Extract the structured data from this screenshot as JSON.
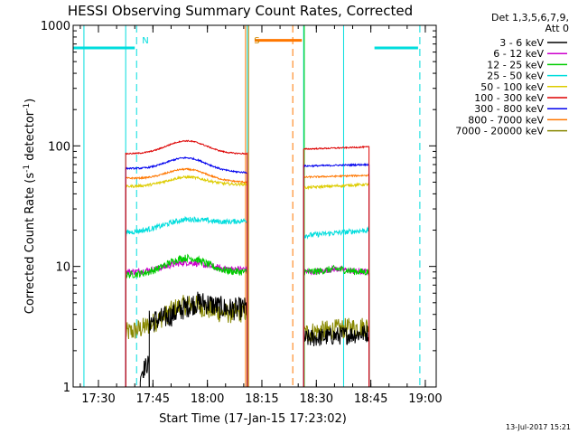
{
  "chart_data": {
    "type": "line",
    "title": "HESSI Observing Summary Count Rates, Corrected",
    "xlabel": "Start Time (17-Jan-15 17:23:02)",
    "ylabel_main": "Corrected Count Rate (s",
    "ylabel_sup1": "-1",
    "ylabel_mid": " detector",
    "ylabel_sup2": "-1",
    "ylabel_end": ")",
    "x_scale": "time",
    "y_scale": "log",
    "xlim": [
      "17:23:02",
      "19:03:00"
    ],
    "ylim": [
      1,
      1000
    ],
    "x_ticks": [
      "17:30",
      "17:45",
      "18:00",
      "18:15",
      "18:30",
      "18:45",
      "19:00"
    ],
    "y_ticks": [
      {
        "value": 1,
        "label": "1"
      },
      {
        "value": 10,
        "label": "10"
      },
      {
        "value": 100,
        "label": "100"
      },
      {
        "value": 1000,
        "label": "1000"
      }
    ],
    "legend_header": [
      "Det 1,3,5,6,7,9,",
      "Att 0"
    ],
    "legend_position": "right",
    "series": [
      {
        "name": "3 - 6 keV",
        "color": "#000000",
        "segments": [
          {
            "t0": "17:41:30",
            "t1": "17:44:00",
            "v0": 1.3,
            "v1": 1.6,
            "peak": 1.5,
            "noise": 0.18
          },
          {
            "t0": "17:44:00",
            "t1": "18:11:00",
            "v0": 3.5,
            "v1": 4.5,
            "peak": 5.5,
            "noise": 0.22
          },
          {
            "t0": "18:26:30",
            "t1": "18:44:30",
            "v0": 2.5,
            "v1": 2.8,
            "peak": 2.8,
            "noise": 0.18
          }
        ]
      },
      {
        "name": "6 - 12 keV",
        "color": "#cc00cc",
        "segments": [
          {
            "t0": "17:37:30",
            "t1": "18:11:00",
            "v0": 9,
            "v1": 9.5,
            "peak": 11,
            "noise": 0.06
          },
          {
            "t0": "18:26:30",
            "t1": "18:44:30",
            "v0": 9,
            "v1": 9,
            "peak": 9.5,
            "noise": 0.06
          }
        ]
      },
      {
        "name": "12 - 25 keV",
        "color": "#00cc00",
        "segments": [
          {
            "t0": "17:37:30",
            "t1": "18:11:00",
            "v0": 8.5,
            "v1": 9,
            "peak": 12,
            "noise": 0.07
          },
          {
            "t0": "18:26:30",
            "t1": "18:44:30",
            "v0": 9,
            "v1": 9,
            "peak": 9.5,
            "noise": 0.07
          }
        ]
      },
      {
        "name": "25 - 50 keV",
        "color": "#00dddd",
        "segments": [
          {
            "t0": "17:37:30",
            "t1": "18:11:00",
            "v0": 19,
            "v1": 24,
            "peak": 27,
            "noise": 0.05
          },
          {
            "t0": "18:26:30",
            "t1": "18:44:30",
            "v0": 18,
            "v1": 20,
            "peak": 19,
            "noise": 0.05
          }
        ]
      },
      {
        "name": "50 - 100 keV",
        "color": "#ddcc00",
        "segments": [
          {
            "t0": "17:37:30",
            "t1": "18:11:00",
            "v0": 46,
            "v1": 48,
            "peak": 56,
            "noise": 0.025
          },
          {
            "t0": "18:26:30",
            "t1": "18:44:30",
            "v0": 45,
            "v1": 48,
            "peak": 47,
            "noise": 0.025
          }
        ]
      },
      {
        "name": "100 - 300 keV",
        "color": "#dd0000",
        "segments": [
          {
            "t0": "17:37:30",
            "t1": "18:11:00",
            "v0": 86,
            "v1": 86,
            "peak": 110,
            "noise": 0.012
          },
          {
            "t0": "18:26:30",
            "t1": "18:44:30",
            "v0": 94,
            "v1": 98,
            "peak": 95,
            "noise": 0.012
          }
        ]
      },
      {
        "name": "300 - 800 keV",
        "color": "#0000ee",
        "segments": [
          {
            "t0": "17:37:30",
            "t1": "18:11:00",
            "v0": 65,
            "v1": 60,
            "peak": 82,
            "noise": 0.015
          },
          {
            "t0": "18:26:30",
            "t1": "18:44:30",
            "v0": 68,
            "v1": 70,
            "peak": 68,
            "noise": 0.015
          }
        ]
      },
      {
        "name": "800 - 7000 keV",
        "color": "#ff7700",
        "segments": [
          {
            "t0": "17:37:30",
            "t1": "18:11:00",
            "v0": 54,
            "v1": 50,
            "peak": 66,
            "noise": 0.015
          },
          {
            "t0": "18:26:30",
            "t1": "18:44:30",
            "v0": 55,
            "v1": 57,
            "peak": 56,
            "noise": 0.015
          }
        ]
      },
      {
        "name": "7000 - 20000 keV",
        "color": "#888800",
        "segments": [
          {
            "t0": "17:37:30",
            "t1": "18:11:00",
            "v0": 2.8,
            "v1": 4.2,
            "peak": 5.5,
            "noise": 0.2
          },
          {
            "t0": "18:26:30",
            "t1": "18:44:30",
            "v0": 2.8,
            "v1": 3.2,
            "peak": 3.2,
            "noise": 0.2
          }
        ]
      }
    ],
    "annotations": {
      "attenuator_bars": [
        {
          "t0": "17:23:02",
          "t1": "17:40:00",
          "value": 650,
          "color": "#00dddd"
        },
        {
          "t0": "18:13:00",
          "t1": "18:26:00",
          "value": 750,
          "color": "#ff7700"
        },
        {
          "t0": "18:46:00",
          "t1": "18:58:00",
          "value": 650,
          "color": "#00dddd"
        }
      ],
      "vlines": [
        {
          "t": "17:26:00",
          "color": "#00dddd",
          "style": "solid"
        },
        {
          "t": "17:37:30",
          "color": "#00dddd",
          "style": "solid"
        },
        {
          "t": "17:40:30",
          "color": "#00dddd",
          "style": "dashed",
          "label": "N"
        },
        {
          "t": "18:10:30",
          "color": "#ff7700",
          "style": "solid"
        },
        {
          "t": "18:11:00",
          "color": "#00dddd",
          "style": "solid"
        },
        {
          "t": "18:11:20",
          "color": "#cc8800",
          "style": "solid",
          "label": "S"
        },
        {
          "t": "18:23:30",
          "color": "#ff7700",
          "style": "dashed"
        },
        {
          "t": "18:26:30",
          "color": "#00dddd",
          "style": "solid"
        },
        {
          "t": "18:26:40",
          "color": "#00cc00",
          "style": "solid"
        },
        {
          "t": "18:37:30",
          "color": "#00dddd",
          "style": "solid"
        },
        {
          "t": "18:58:30",
          "color": "#00dddd",
          "style": "dashed"
        }
      ],
      "footer_date": "13-Jul-2017 15:21"
    }
  }
}
